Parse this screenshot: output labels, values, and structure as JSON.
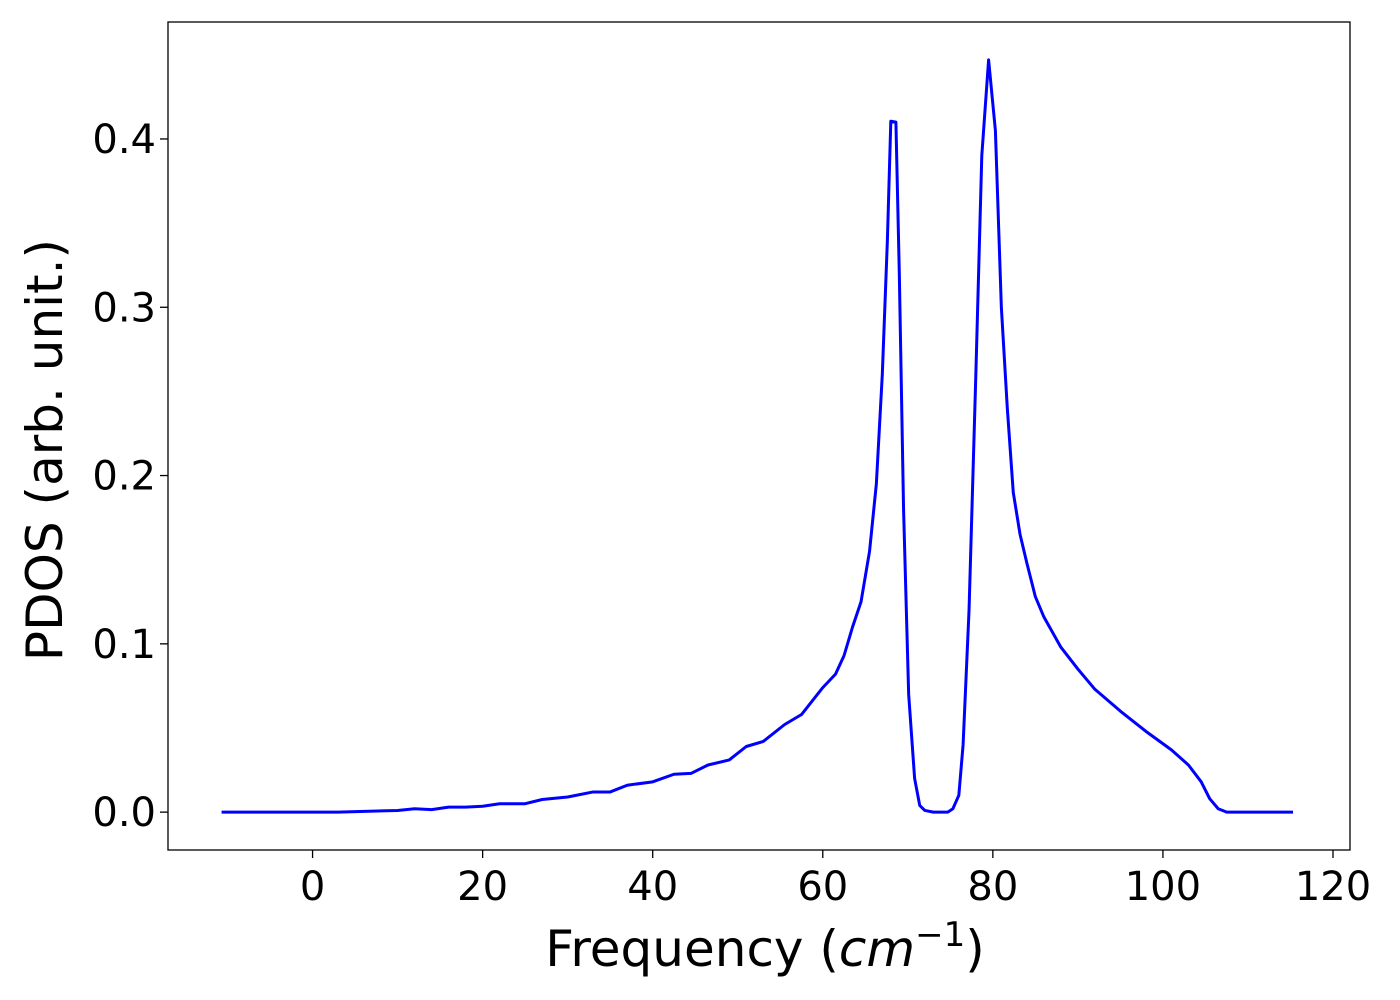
{
  "chart_data": {
    "type": "line",
    "title": "",
    "xlabel_text": "Frequency (",
    "xlabel_math": "cm",
    "xlabel_sup": "−1",
    "xlabel_close": ")",
    "ylabel": "PDOS (arb. unit.)",
    "xlim": [
      -17,
      122
    ],
    "ylim": [
      -0.0225,
      0.4695
    ],
    "x_ticks": [
      0,
      20,
      40,
      60,
      80,
      100,
      120
    ],
    "x_tick_labels": [
      "0",
      "20",
      "40",
      "60",
      "80",
      "100",
      "120"
    ],
    "y_ticks": [
      0.0,
      0.1,
      0.2,
      0.3,
      0.4
    ],
    "y_tick_labels": [
      "0.0",
      "0.1",
      "0.2",
      "0.3",
      "0.4"
    ],
    "grid": false,
    "legend": "none",
    "line_color": "#0000ff",
    "series": [
      {
        "points": [
          [
            -10.7,
            0.0
          ],
          [
            3.0,
            0.0
          ],
          [
            10.0,
            0.001
          ],
          [
            12.0,
            0.002
          ],
          [
            14.0,
            0.0015
          ],
          [
            16.0,
            0.003
          ],
          [
            18.0,
            0.003
          ],
          [
            20.0,
            0.0035
          ],
          [
            22.0,
            0.005
          ],
          [
            25.0,
            0.005
          ],
          [
            27.0,
            0.0075
          ],
          [
            30.0,
            0.009
          ],
          [
            33.0,
            0.012
          ],
          [
            35.0,
            0.012
          ],
          [
            37.0,
            0.016
          ],
          [
            40.0,
            0.018
          ],
          [
            42.5,
            0.0225
          ],
          [
            44.5,
            0.023
          ],
          [
            46.5,
            0.028
          ],
          [
            49.0,
            0.031
          ],
          [
            51.0,
            0.039
          ],
          [
            53.0,
            0.042
          ],
          [
            55.5,
            0.052
          ],
          [
            57.5,
            0.058
          ],
          [
            60.0,
            0.074
          ],
          [
            61.5,
            0.082
          ],
          [
            62.5,
            0.093
          ],
          [
            63.5,
            0.11
          ],
          [
            64.5,
            0.125
          ],
          [
            65.5,
            0.155
          ],
          [
            66.3,
            0.195
          ],
          [
            67.0,
            0.26
          ],
          [
            67.6,
            0.34
          ],
          [
            68.0,
            0.4105
          ],
          [
            68.6,
            0.41
          ],
          [
            69.0,
            0.32
          ],
          [
            69.5,
            0.18
          ],
          [
            70.1,
            0.07
          ],
          [
            70.8,
            0.02
          ],
          [
            71.4,
            0.004
          ],
          [
            72.0,
            0.001
          ],
          [
            73.0,
            0.0
          ],
          [
            74.7,
            0.0
          ],
          [
            75.3,
            0.002
          ],
          [
            76.0,
            0.01
          ],
          [
            76.5,
            0.04
          ],
          [
            77.2,
            0.12
          ],
          [
            78.0,
            0.26
          ],
          [
            78.7,
            0.39
          ],
          [
            79.5,
            0.447
          ],
          [
            80.3,
            0.405
          ],
          [
            81.0,
            0.3
          ],
          [
            81.7,
            0.24
          ],
          [
            82.4,
            0.19
          ],
          [
            83.2,
            0.165
          ],
          [
            84.0,
            0.148
          ],
          [
            85.0,
            0.128
          ],
          [
            86.0,
            0.116
          ],
          [
            88.0,
            0.098
          ],
          [
            90.0,
            0.085
          ],
          [
            92.0,
            0.073
          ],
          [
            95.0,
            0.06
          ],
          [
            98.0,
            0.048
          ],
          [
            101.0,
            0.037
          ],
          [
            103.0,
            0.028
          ],
          [
            104.5,
            0.018
          ],
          [
            105.5,
            0.008
          ],
          [
            106.5,
            0.002
          ],
          [
            107.5,
            0.0
          ],
          [
            115.3,
            0.0
          ]
        ]
      }
    ]
  }
}
